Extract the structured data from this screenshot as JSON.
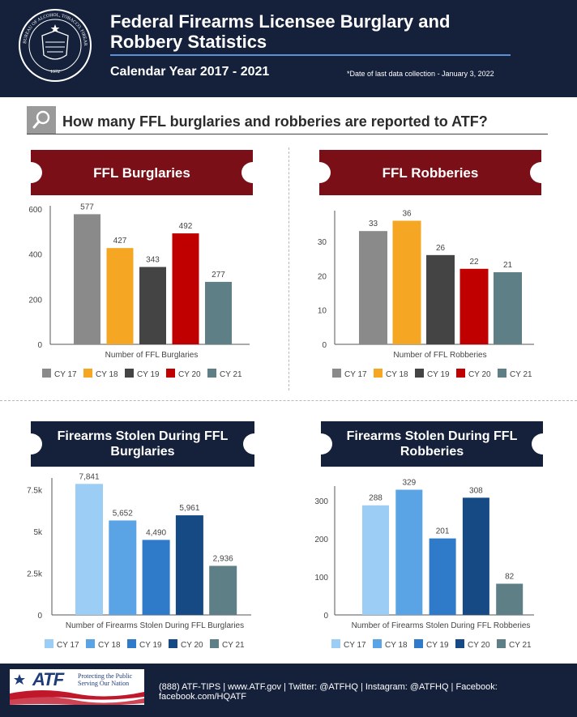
{
  "header": {
    "title_line1": "Federal Firearms Licensee Burglary and",
    "title_line2": "Robbery Statistics",
    "subtitle": "Calendar Year 2017 - 2021",
    "note": "*Date of last data collection - January 3, 2022",
    "seal_text_top": "BUREAU OF ALCOHOL, TOBACCO, FIREARMS AND EXPLOSIVES",
    "seal_year": "1972"
  },
  "question": "How many FFL burglaries and robberies are reported to ATF?",
  "colors": {
    "navy": "#15213b",
    "maroon": "#7a0f17",
    "gray_header": "#9a9a9a"
  },
  "chart_data": [
    {
      "type": "bar",
      "title": "FFL Burglaries",
      "categories": [
        "CY 17",
        "CY 18",
        "CY 19",
        "CY 20",
        "CY 21"
      ],
      "values": [
        577,
        427,
        343,
        492,
        277
      ],
      "labels": [
        "577",
        "427",
        "343",
        "492",
        "277"
      ],
      "colors": [
        "#8a8a8a",
        "#f5a623",
        "#444444",
        "#c00000",
        "#5f7f86"
      ],
      "xlabel": "Number of FFL Burglaries",
      "ylabel": "",
      "ylim": [
        0,
        600
      ],
      "yticks": [
        0,
        200,
        400,
        600
      ],
      "yticklabels": [
        "0",
        "200",
        "400",
        "600"
      ]
    },
    {
      "type": "bar",
      "title": "FFL Robberies",
      "categories": [
        "CY 17",
        "CY 18",
        "CY 19",
        "CY 20",
        "CY 21"
      ],
      "values": [
        33,
        36,
        26,
        22,
        21
      ],
      "labels": [
        "33",
        "36",
        "26",
        "22",
        "21"
      ],
      "colors": [
        "#8a8a8a",
        "#f5a623",
        "#444444",
        "#c00000",
        "#5f7f86"
      ],
      "xlabel": "Number of FFL Robberies",
      "ylabel": "",
      "ylim": [
        0,
        38
      ],
      "yticks": [
        0,
        10,
        20,
        30
      ],
      "yticklabels": [
        "0",
        "10",
        "20",
        "30"
      ]
    },
    {
      "type": "bar",
      "title": "Firearms Stolen During FFL Burglaries",
      "categories": [
        "CY 17",
        "CY 18",
        "CY 19",
        "CY 20",
        "CY 21"
      ],
      "values": [
        7841,
        5652,
        4490,
        5961,
        2936
      ],
      "labels": [
        "7,841",
        "5,652",
        "4,490",
        "5,961",
        "2,936"
      ],
      "colors": [
        "#9ccdf4",
        "#5aa4e6",
        "#2f7ac9",
        "#154a85",
        "#5f7f86"
      ],
      "xlabel": "Number of Firearms Stolen During FFL Burglaries",
      "ylabel": "",
      "ylim": [
        0,
        8000
      ],
      "yticks": [
        0,
        2500,
        5000,
        7500
      ],
      "yticklabels": [
        "0",
        "2.5k",
        "5k",
        "7.5k"
      ]
    },
    {
      "type": "bar",
      "title": "Firearms Stolen During FFL Robberies",
      "categories": [
        "CY 17",
        "CY 18",
        "CY 19",
        "CY 20",
        "CY 21"
      ],
      "values": [
        288,
        329,
        201,
        308,
        82
      ],
      "labels": [
        "288",
        "329",
        "201",
        "308",
        "82"
      ],
      "colors": [
        "#9ccdf4",
        "#5aa4e6",
        "#2f7ac9",
        "#154a85",
        "#5f7f86"
      ],
      "xlabel": "Number of Firearms Stolen During FFL Robberies",
      "ylabel": "",
      "ylim": [
        0,
        330
      ],
      "yticks": [
        0,
        100,
        200,
        300
      ],
      "yticklabels": [
        "0",
        "100",
        "200",
        "300"
      ]
    }
  ],
  "footer": {
    "logo_text": "ATF",
    "tagline_line1": "Protecting the Public",
    "tagline_line2": "Serving Our Nation",
    "contact": "(888) ATF-TIPS | www.ATF.gov | Twitter: @ATFHQ | Instagram: @ATFHQ | Facebook: facebook.com/HQATF"
  }
}
